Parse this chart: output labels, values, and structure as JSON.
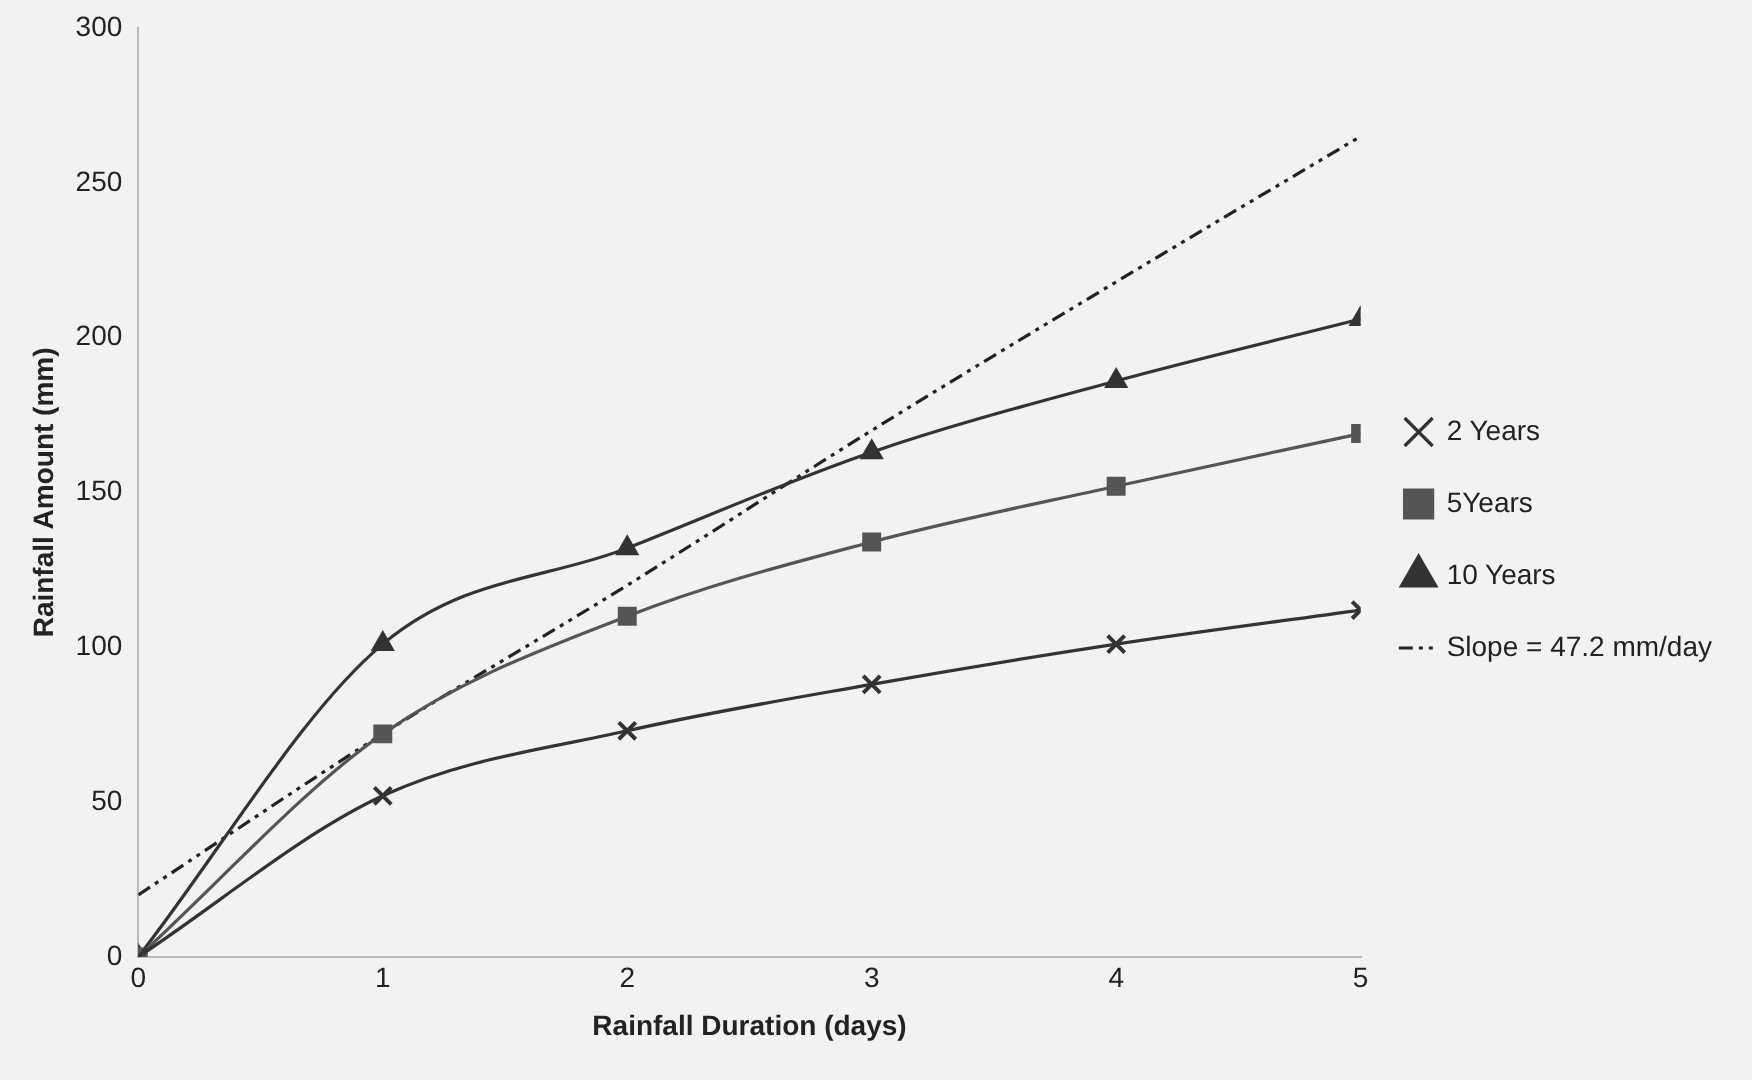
{
  "chart_data": {
    "type": "line",
    "xlabel": "Rainfall Duration (days)",
    "ylabel": "Rainfall Amount (mm)",
    "x": [
      0,
      1,
      2,
      3,
      4,
      5
    ],
    "series": [
      {
        "name": "2 Years",
        "color": "#333333",
        "marker": "cross",
        "values": [
          0,
          52,
          73,
          88,
          101,
          112
        ]
      },
      {
        "name": "5Years",
        "color": "#555555",
        "marker": "square",
        "values": [
          0,
          72,
          110,
          134,
          152,
          169
        ]
      },
      {
        "name": "10 Years",
        "color": "#333333",
        "marker": "triangle",
        "values": [
          0,
          101,
          132,
          163,
          186,
          206
        ]
      },
      {
        "name": "Slope = 47.2 mm/day",
        "color": "#222222",
        "marker": "none",
        "line_style": "dashed",
        "values": [
          20,
          72,
          120,
          170,
          218,
          265
        ]
      }
    ],
    "xlim": [
      0,
      5
    ],
    "xticks": [
      0,
      1,
      2,
      3,
      4,
      5
    ],
    "ylim": [
      0,
      300
    ],
    "yticks": [
      0,
      50,
      100,
      150,
      200,
      250,
      300
    ],
    "grid": false,
    "legend": "right"
  }
}
